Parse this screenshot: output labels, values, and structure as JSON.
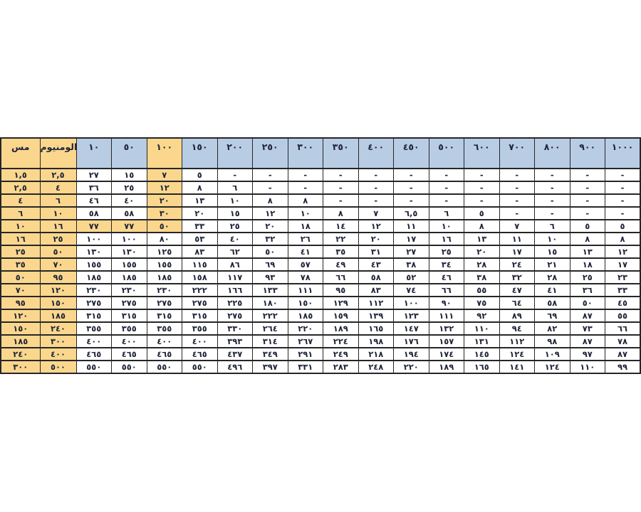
{
  "table": {
    "name": "conductor-size-distance-table",
    "columns": [
      "مس",
      "الومنيوم",
      "١٠",
      "٥٠",
      "١٠٠",
      "١٥٠",
      "٢٠٠",
      "٢٥٠",
      "٣٠٠",
      "٣٥٠",
      "٤٠٠",
      "٤٥٠",
      "٥٠٠",
      "٦٠٠",
      "٧٠٠",
      "٨٠٠",
      "٩٠٠",
      "١٠٠٠"
    ],
    "rows": [
      [
        "١,٥",
        "٢,٥",
        "٢٧",
        "١٥",
        "٧",
        "٥",
        "-",
        "-",
        "-",
        "-",
        "-",
        "-",
        "-",
        "-",
        "-",
        "-",
        "-",
        "-"
      ],
      [
        "٢,٥",
        "٤",
        "٣٦",
        "٢٥",
        "١٢",
        "٨",
        "٦",
        "-",
        "-",
        "-",
        "-",
        "-",
        "-",
        "-",
        "-",
        "-",
        "-",
        "-"
      ],
      [
        "٤",
        "٦",
        "٤٦",
        "٤٠",
        "٢٠",
        "١٣",
        "١٠",
        "٨",
        "٨",
        "-",
        "-",
        "-",
        "-",
        "-",
        "-",
        "-",
        "-",
        "-"
      ],
      [
        "٦",
        "١٠",
        "٥٨",
        "٥٨",
        "٣٠",
        "٢٠",
        "١٥",
        "١٢",
        "١٠",
        "٨",
        "٧",
        "٦,٥",
        "٦",
        "٥",
        "-",
        "-",
        "-",
        "-"
      ],
      [
        "١٠",
        "١٦",
        "٧٧",
        "٧٧",
        "٥٠",
        "٣٣",
        "٢٥",
        "٢٠",
        "١٨",
        "١٤",
        "١٢",
        "١١",
        "١٠",
        "٨",
        "٧",
        "٦",
        "٥",
        "٥"
      ],
      [
        "١٦",
        "٢٥",
        "١٠٠",
        "١٠٠",
        "٨٠",
        "٥٣",
        "٤٠",
        "٣٢",
        "٢٦",
        "٢٢",
        "٢٠",
        "١٧",
        "١٦",
        "١٣",
        "١١",
        "١٠",
        "٨",
        "٨"
      ],
      [
        "٢٥",
        "٥٠",
        "١٣٠",
        "١٣٠",
        "١٢٥",
        "٨٣",
        "٦٢",
        "٥٠",
        "٤١",
        "٣٥",
        "٣١",
        "٢٧",
        "٢٥",
        "٢٠",
        "١٧",
        "١٥",
        "١٣",
        "١٢"
      ],
      [
        "٣٥",
        "٧٠",
        "١٥٥",
        "١٥٥",
        "١٥٥",
        "١١٥",
        "٨٦",
        "٦٩",
        "٥٧",
        "٤٩",
        "٤٣",
        "٣٨",
        "٣٤",
        "٢٨",
        "٢٤",
        "٢١",
        "١٨",
        "١٧"
      ],
      [
        "٥٠",
        "٩٥",
        "١٨٥",
        "١٨٥",
        "١٨٥",
        "١٥٨",
        "١١٧",
        "٩٣",
        "٧٨",
        "٦٦",
        "٥٨",
        "٥٢",
        "٤٦",
        "٣٨",
        "٣٢",
        "٢٨",
        "٢٥",
        "٢٣"
      ],
      [
        "٧٠",
        "١٢٠",
        "٢٣٠",
        "٢٣٠",
        "٢٣٠",
        "٢٢٢",
        "١٦٦",
        "١٣٣",
        "١١١",
        "٩٥",
        "٨٣",
        "٧٤",
        "٦٦",
        "٥٥",
        "٤٧",
        "٤١",
        "٣٦",
        "٣٣"
      ],
      [
        "٩٥",
        "١٥٠",
        "٢٧٥",
        "٢٧٥",
        "٢٧٥",
        "٢٧٥",
        "٢٢٥",
        "١٨٠",
        "١٥٠",
        "١٢٩",
        "١١٢",
        "١٠٠",
        "٩٠",
        "٧٥",
        "٦٤",
        "٥٨",
        "٥٠",
        "٤٥"
      ],
      [
        "١٢٠",
        "١٨٥",
        "٣١٥",
        "٣١٥",
        "٣١٥",
        "٣١٥",
        "٢٧٥",
        "٢٢٢",
        "١٨٥",
        "١٥٩",
        "١٣٩",
        "١٢٣",
        "١١١",
        "٩٢",
        "٨٩",
        "٦٩",
        "٨٧",
        "٥٥"
      ],
      [
        "١٥٠",
        "٢٤٠",
        "٣٥٥",
        "٣٥٥",
        "٣٥٥",
        "٣٥٥",
        "٣٣٠",
        "٢٦٤",
        "٢٢٠",
        "١٨٩",
        "١٦٥",
        "١٤٧",
        "١٣٢",
        "١١٠",
        "٩٤",
        "٨٢",
        "٧٣",
        "٦٦"
      ],
      [
        "١٨٥",
        "٣٠٠",
        "٤٠٠",
        "٤٠٠",
        "٤٠٠",
        "٤٠٠",
        "٣٩٣",
        "٣١٤",
        "٢٦٧",
        "٢٢٤",
        "١٩٨",
        "١٧٦",
        "١٥٧",
        "١٣١",
        "١١٢",
        "٩٨",
        "٨٧",
        "٧٨"
      ],
      [
        "٢٤٠",
        "٤٠٠",
        "٤٦٥",
        "٤٦٥",
        "٤٦٥",
        "٤٦٥",
        "٤٣٧",
        "٣٤٩",
        "٢٩١",
        "٢٤٩",
        "٢١٨",
        "١٩٤",
        "١٧٤",
        "١٤٥",
        "١٢٤",
        "١٠٩",
        "٩٧",
        "٨٧"
      ],
      [
        "٣٠٠",
        "٥٠٠",
        "٥٥٠",
        "٥٥٠",
        "٥٥٠",
        "٥٥٠",
        "٤٩٦",
        "٣٩٧",
        "٣٣١",
        "٢٨٣",
        "٢٤٨",
        "٢٢٠",
        "١٨٩",
        "١٦٥",
        "١٤١",
        "١٢٤",
        "١١٠",
        "٩٩"
      ]
    ],
    "tan_columns": [
      0,
      1
    ],
    "highlight_header_cols": [
      0,
      1,
      4
    ],
    "highlight_cells": [
      [
        0,
        4
      ],
      [
        1,
        4
      ],
      [
        2,
        4
      ],
      [
        3,
        4
      ],
      [
        4,
        2
      ],
      [
        4,
        3
      ],
      [
        4,
        4
      ]
    ],
    "colors": {
      "header_blue": "#B8CCE4",
      "tan": "#FBD78E",
      "border": "#262626",
      "text": "#1F2537"
    }
  }
}
